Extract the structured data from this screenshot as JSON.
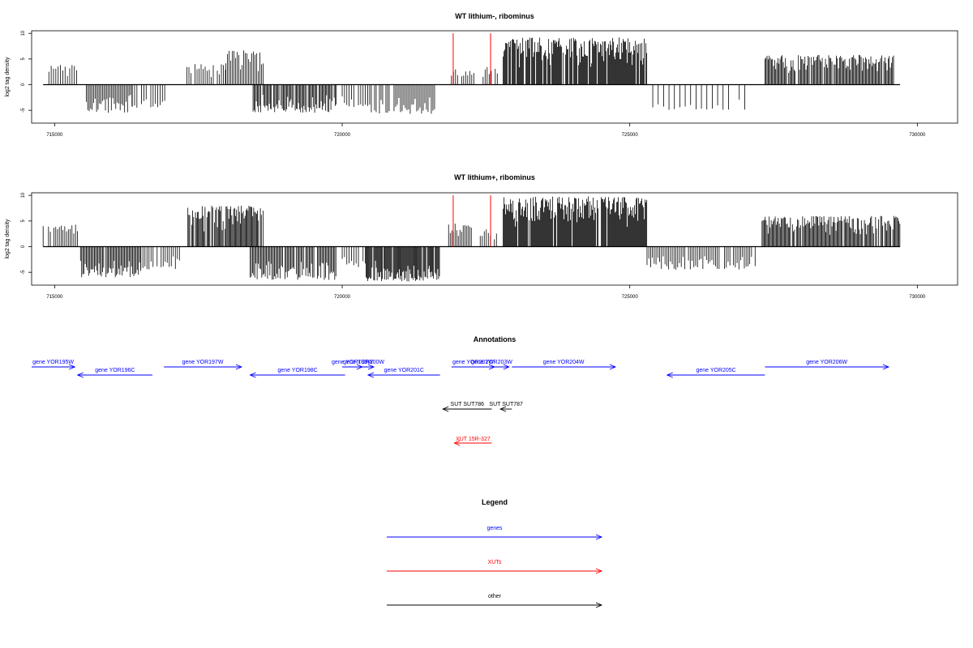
{
  "chart_data": [
    {
      "type": "bar",
      "title": "WT lithium-, ribominus",
      "ylabel": "log2 tag density",
      "xlim": [
        714600,
        730700
      ],
      "ylim": [
        -7.5,
        10.5
      ],
      "x_ticks": [
        715000,
        720000,
        725000,
        730000
      ],
      "y_ticks": [
        -5,
        0,
        5,
        10
      ],
      "grid": false,
      "baseline_range": [
        714800,
        729700
      ],
      "marker_lines": {
        "color": "#ff0000",
        "x": [
          721930,
          722580
        ],
        "y_top": 10
      },
      "segments": [
        {
          "start": 714900,
          "end": 715400,
          "sign": 1,
          "max": 4.0,
          "density": 0.35
        },
        {
          "start": 715550,
          "end": 716350,
          "sign": -1,
          "max": 5.5,
          "density": 0.55
        },
        {
          "start": 716350,
          "end": 716950,
          "sign": -1,
          "max": 4.5,
          "density": 0.35
        },
        {
          "start": 717300,
          "end": 718000,
          "sign": 1,
          "max": 4.0,
          "density": 0.4
        },
        {
          "start": 717950,
          "end": 718650,
          "sign": 1,
          "max": 6.8,
          "density": 0.5
        },
        {
          "start": 718450,
          "end": 719900,
          "sign": -1,
          "max": 5.5,
          "density": 0.75
        },
        {
          "start": 720000,
          "end": 720450,
          "sign": -1,
          "max": 4.5,
          "density": 0.35
        },
        {
          "start": 720450,
          "end": 721650,
          "sign": -1,
          "max": 5.8,
          "density": 0.5
        },
        {
          "start": 721900,
          "end": 722300,
          "sign": 1,
          "max": 3.0,
          "density": 0.4
        },
        {
          "start": 722450,
          "end": 722700,
          "sign": 1,
          "max": 3.5,
          "density": 0.4
        },
        {
          "start": 722800,
          "end": 725300,
          "sign": 1,
          "max": 9.2,
          "density": 1.0
        },
        {
          "start": 725400,
          "end": 727000,
          "sign": -1,
          "max": 5.0,
          "density": 0.15
        },
        {
          "start": 727350,
          "end": 729600,
          "sign": 1,
          "max": 5.8,
          "density": 0.75
        }
      ]
    },
    {
      "type": "bar",
      "title": "WT lithium+, ribominus",
      "ylabel": "log2 tag density",
      "xlim": [
        714600,
        730700
      ],
      "ylim": [
        -7.5,
        10.5
      ],
      "x_ticks": [
        715000,
        720000,
        725000,
        730000
      ],
      "y_ticks": [
        -5,
        0,
        5,
        10
      ],
      "grid": false,
      "baseline_range": [
        714800,
        729700
      ],
      "marker_lines": {
        "color": "#ff0000",
        "x": [
          721930,
          722580
        ],
        "y_top": 10
      },
      "segments": [
        {
          "start": 714800,
          "end": 715400,
          "sign": 1,
          "max": 4.5,
          "density": 0.45
        },
        {
          "start": 715450,
          "end": 716500,
          "sign": -1,
          "max": 6.0,
          "density": 0.7
        },
        {
          "start": 716500,
          "end": 717200,
          "sign": -1,
          "max": 4.5,
          "density": 0.4
        },
        {
          "start": 717300,
          "end": 718650,
          "sign": 1,
          "max": 8.0,
          "density": 0.85
        },
        {
          "start": 718400,
          "end": 719900,
          "sign": -1,
          "max": 6.5,
          "density": 0.7
        },
        {
          "start": 720000,
          "end": 720400,
          "sign": -1,
          "max": 4.0,
          "density": 0.35
        },
        {
          "start": 720400,
          "end": 721700,
          "sign": -1,
          "max": 6.8,
          "density": 0.95
        },
        {
          "start": 721850,
          "end": 722250,
          "sign": 1,
          "max": 4.5,
          "density": 0.5
        },
        {
          "start": 722400,
          "end": 722700,
          "sign": 1,
          "max": 3.5,
          "density": 0.4
        },
        {
          "start": 722800,
          "end": 725300,
          "sign": 1,
          "max": 9.8,
          "density": 1.0
        },
        {
          "start": 725300,
          "end": 727200,
          "sign": -1,
          "max": 4.5,
          "density": 0.45
        },
        {
          "start": 727300,
          "end": 729700,
          "sign": 1,
          "max": 6.0,
          "density": 0.8
        }
      ]
    }
  ],
  "annotations": {
    "title": "Annotations",
    "genes_color": "#0000ff",
    "xuts_color": "#ff0000",
    "other_color": "#000000",
    "genes": [
      {
        "label": "gene YOR195W",
        "start": 714600,
        "end": 715350,
        "strand": "+",
        "row": 0
      },
      {
        "label": "gene YOR196C",
        "start": 715400,
        "end": 716700,
        "strand": "-",
        "row": 1
      },
      {
        "label": "gene YOR197W",
        "start": 716900,
        "end": 718250,
        "strand": "+",
        "row": 0
      },
      {
        "label": "gene YOR198C",
        "start": 718400,
        "end": 720050,
        "strand": "-",
        "row": 1
      },
      {
        "label": "gene YOR199W",
        "start": 720000,
        "end": 720350,
        "strand": "+",
        "row": 0
      },
      {
        "label": "gene YOR200W",
        "start": 720200,
        "end": 720550,
        "strand": "+",
        "row": 0
      },
      {
        "label": "gene YOR201C",
        "start": 720450,
        "end": 721700,
        "strand": "-",
        "row": 1
      },
      {
        "label": "gene YOR202W",
        "start": 721900,
        "end": 722650,
        "strand": "+",
        "row": 0
      },
      {
        "label": "gene YOR203W",
        "start": 722300,
        "end": 722900,
        "strand": "+",
        "row": 0
      },
      {
        "label": "gene YOR204W",
        "start": 722950,
        "end": 724750,
        "strand": "+",
        "row": 0
      },
      {
        "label": "gene YOR205C",
        "start": 725650,
        "end": 727350,
        "strand": "-",
        "row": 1
      },
      {
        "label": "gene YOR206W",
        "start": 727350,
        "end": 729500,
        "strand": "+",
        "row": 0
      }
    ],
    "other": [
      {
        "label": "SUT SUT786",
        "start": 721750,
        "end": 722600,
        "strand": "-"
      },
      {
        "label": "SUT SUT787",
        "start": 722750,
        "end": 722950,
        "strand": "-"
      }
    ],
    "xuts": [
      {
        "label": "XUT 15R-327",
        "start": 721950,
        "end": 722600,
        "strand": "-"
      }
    ]
  },
  "legend": {
    "title": "Legend",
    "items": [
      {
        "label": "genes",
        "color": "#0000ff"
      },
      {
        "label": "XUTs",
        "color": "#ff0000"
      },
      {
        "label": "other",
        "color": "#000000"
      }
    ]
  }
}
